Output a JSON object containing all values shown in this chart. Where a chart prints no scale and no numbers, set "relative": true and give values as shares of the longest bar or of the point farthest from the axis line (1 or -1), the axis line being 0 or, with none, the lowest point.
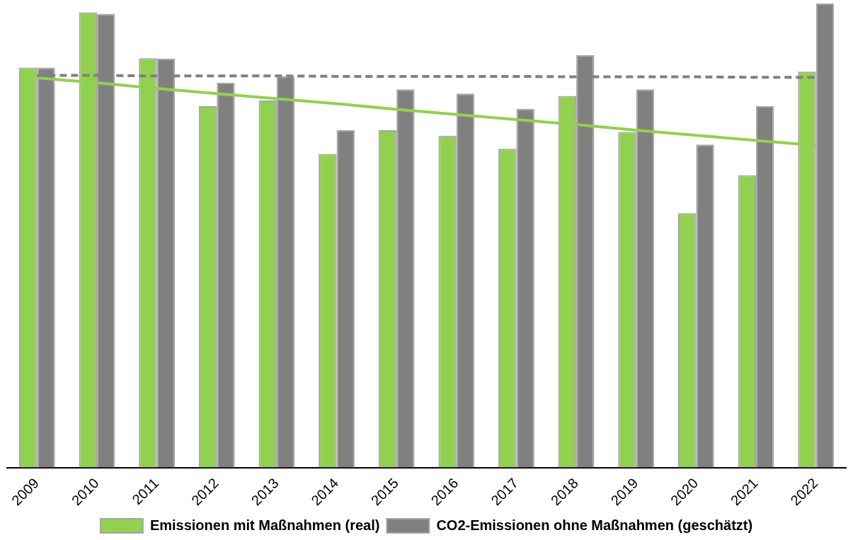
{
  "chart_data": {
    "type": "bar",
    "relative": true,
    "legend": "bottom",
    "marker": "none",
    "categories": [
      "2009",
      "2010",
      "2011",
      "2012",
      "2013",
      "2014",
      "2015",
      "2016",
      "2017",
      "2018",
      "2019",
      "2020",
      "2021",
      "2022"
    ],
    "series": [
      {
        "name": "Emissionen mit Maßnahmen (real)",
        "color": "#92d050",
        "values": [
          0.862,
          0.981,
          0.882,
          0.779,
          0.791,
          0.676,
          0.727,
          0.715,
          0.687,
          0.801,
          0.723,
          0.548,
          0.63,
          0.853
        ]
      },
      {
        "name": "CO2-Emissionen ohne Maßnahmen (geschätzt)",
        "color": "#808080",
        "values": [
          0.862,
          0.978,
          0.881,
          0.829,
          0.843,
          0.727,
          0.815,
          0.806,
          0.773,
          0.889,
          0.815,
          0.696,
          0.779,
          1
        ]
      },
      {
        "type": "line",
        "color": "#808080",
        "line_style": "dashed",
        "values": [
          0.845,
          0.845,
          0.844,
          0.844,
          0.844,
          0.843,
          0.843,
          0.843,
          0.843,
          0.842,
          0.842,
          0.842,
          0.841,
          0.841
        ]
      },
      {
        "type": "line",
        "color": "#92d050",
        "line_style": "solid",
        "values": [
          0.84,
          0.829,
          0.817,
          0.806,
          0.795,
          0.784,
          0.772,
          0.761,
          0.75,
          0.739,
          0.727,
          0.716,
          0.705,
          0.694
        ]
      }
    ]
  }
}
